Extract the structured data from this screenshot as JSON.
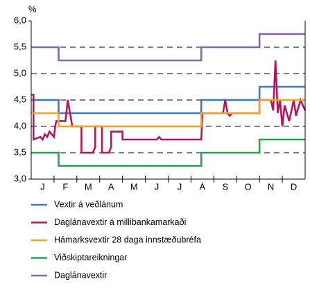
{
  "chart_data": {
    "type": "line",
    "y_label": "%",
    "categories": [
      "J",
      "F",
      "M",
      "A",
      "M",
      "J",
      "J",
      "Á",
      "S",
      "O",
      "N",
      "D"
    ],
    "xlim": [
      0,
      12
    ],
    "ylim": [
      3.0,
      6.0
    ],
    "yticks": [
      {
        "value": 3.0,
        "label": "3,0"
      },
      {
        "value": 3.5,
        "label": "3,5"
      },
      {
        "value": 4.0,
        "label": "4,0"
      },
      {
        "value": 4.5,
        "label": "4,5"
      },
      {
        "value": 5.0,
        "label": "5,0"
      },
      {
        "value": 5.5,
        "label": "5,5"
      },
      {
        "value": 6.0,
        "label": "6,0"
      }
    ],
    "grid": true,
    "series": [
      {
        "name": "Vextir á veðlánum",
        "color": "#3b78bd",
        "x": [
          0,
          1.2,
          1.2,
          7.45,
          7.45,
          10.0,
          10.0,
          12
        ],
        "values": [
          4.5,
          4.5,
          4.25,
          4.25,
          4.5,
          4.5,
          4.75,
          4.75
        ]
      },
      {
        "name": "Daglánavextir á millibankamarkaði",
        "color": "#b5155e",
        "x": [
          0,
          0.1,
          0.1,
          0.4,
          0.5,
          0.6,
          0.7,
          0.8,
          1.0,
          1.05,
          1.1,
          1.5,
          1.6,
          1.7,
          1.8,
          2.1,
          2.2,
          2.2,
          2.7,
          2.8,
          2.8,
          3.0,
          3.1,
          3.1,
          3.4,
          3.5,
          3.5,
          4.0,
          4.0,
          5.5,
          5.6,
          5.7,
          6.0,
          7.45,
          7.5,
          8.4,
          8.5,
          8.6,
          8.7,
          8.8,
          10.0,
          10.0,
          10.5,
          10.6,
          10.7,
          10.8,
          10.9,
          11.0,
          11.1,
          11.3,
          11.5,
          11.6,
          11.8,
          12
        ],
        "values": [
          4.6,
          4.6,
          3.75,
          3.8,
          3.75,
          3.85,
          3.8,
          3.9,
          3.8,
          4.0,
          4.1,
          4.1,
          4.5,
          4.25,
          4.0,
          4.0,
          4.0,
          3.5,
          3.5,
          3.6,
          4.0,
          4.0,
          4.0,
          3.5,
          3.5,
          3.6,
          3.9,
          3.9,
          3.75,
          3.75,
          3.8,
          3.75,
          3.75,
          3.75,
          4.25,
          4.25,
          4.5,
          4.25,
          4.2,
          4.25,
          4.25,
          4.5,
          4.5,
          4.3,
          5.25,
          4.25,
          4.5,
          4.0,
          4.4,
          4.1,
          4.5,
          4.2,
          4.5,
          4.3
        ]
      },
      {
        "name": "Hámarksvextir 28 daga innstæðubréfa",
        "color": "#f7a21b",
        "x": [
          0,
          1.2,
          1.2,
          7.45,
          7.45,
          10.0,
          10.0,
          12
        ],
        "values": [
          4.25,
          4.25,
          4.0,
          4.0,
          4.25,
          4.25,
          4.5,
          4.5
        ]
      },
      {
        "name": "Viðskiptareikningar",
        "color": "#1fa64a",
        "x": [
          0,
          1.2,
          1.2,
          7.45,
          7.45,
          10.0,
          10.0,
          12
        ],
        "values": [
          3.5,
          3.5,
          3.25,
          3.25,
          3.5,
          3.5,
          3.75,
          3.75
        ]
      },
      {
        "name": "Daglánavextir",
        "color": "#8064b8",
        "x": [
          0,
          1.2,
          1.2,
          7.45,
          7.45,
          10.0,
          10.0,
          12
        ],
        "values": [
          5.5,
          5.5,
          5.25,
          5.25,
          5.5,
          5.5,
          5.75,
          5.75
        ]
      }
    ]
  }
}
